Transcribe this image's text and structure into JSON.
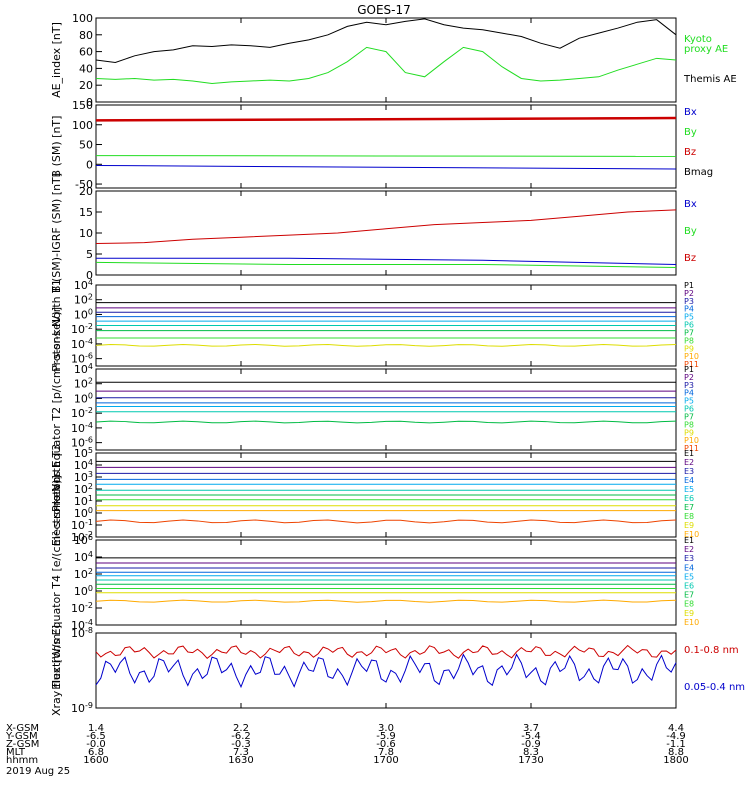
{
  "title": "GOES-17",
  "colors": {
    "black": "#000000",
    "blue": "#0000cc",
    "green": "#22dd22",
    "red": "#cc0000",
    "p_colors": [
      "#000000",
      "#5c007f",
      "#1a1aa6",
      "#0066dd",
      "#00aaee",
      "#00c8b0",
      "#00bb44",
      "#33dd33",
      "#dddd00",
      "#ffaa00",
      "#ee4400",
      "#aa0000"
    ]
  },
  "chart_data": [
    {
      "id": "ae",
      "type": "line",
      "ylabel": "AE_index [nT]",
      "ylim": [
        0,
        100
      ],
      "yticks": [
        "0",
        "20",
        "40",
        "60",
        "80",
        "100"
      ],
      "legend": [
        "Kyoto",
        "proxy AE",
        "Themis AE"
      ],
      "series": [
        {
          "name": "Themis AE",
          "color": "black",
          "x": [
            0,
            4,
            8,
            12,
            16,
            20,
            24,
            28,
            32,
            36,
            40,
            44,
            48,
            52,
            56,
            60,
            64,
            68,
            72,
            76,
            80,
            84,
            88,
            92,
            96,
            100,
            104,
            108,
            112,
            116,
            120
          ],
          "values": [
            50,
            47,
            55,
            60,
            62,
            67,
            66,
            68,
            67,
            65,
            70,
            74,
            80,
            90,
            95,
            92,
            96,
            99,
            92,
            88,
            86,
            82,
            78,
            70,
            64,
            76,
            82,
            88,
            95,
            98,
            80
          ]
        },
        {
          "name": "Kyoto proxy AE",
          "color": "green",
          "x": [
            0,
            4,
            8,
            12,
            16,
            20,
            24,
            28,
            32,
            36,
            40,
            44,
            48,
            52,
            56,
            60,
            64,
            68,
            72,
            76,
            80,
            84,
            88,
            92,
            96,
            100,
            104,
            108,
            112,
            116,
            120
          ],
          "values": [
            28,
            27,
            28,
            26,
            27,
            25,
            22,
            24,
            25,
            26,
            25,
            28,
            35,
            48,
            65,
            60,
            35,
            30,
            48,
            65,
            60,
            42,
            28,
            25,
            26,
            28,
            30,
            38,
            45,
            52,
            50
          ]
        }
      ]
    },
    {
      "id": "bsm",
      "type": "line",
      "ylabel": "B (SM) [nT]",
      "ylim": [
        -60,
        150
      ],
      "yticks": [
        "-50",
        "0",
        "50",
        "100",
        "150"
      ],
      "legend": [
        "Bx",
        "By",
        "Bz",
        "Bmag"
      ],
      "series": [
        {
          "name": "Bmag",
          "color": "black",
          "x": [
            0,
            120
          ],
          "values": [
            112,
            118
          ]
        },
        {
          "name": "Bz",
          "color": "red",
          "x": [
            0,
            120
          ],
          "values": [
            111,
            117
          ]
        },
        {
          "name": "By",
          "color": "green",
          "x": [
            0,
            120
          ],
          "values": [
            22,
            20
          ]
        },
        {
          "name": "Bx",
          "color": "blue",
          "x": [
            0,
            120
          ],
          "values": [
            -3,
            -12
          ]
        }
      ]
    },
    {
      "id": "bdiff",
      "type": "line",
      "ylabel": "B (SM)-IGRF (SM) [nT]",
      "ylim": [
        0,
        20
      ],
      "yticks": [
        "0",
        "5",
        "10",
        "15",
        "20"
      ],
      "legend": [
        "Bx",
        "By",
        "Bz"
      ],
      "series": [
        {
          "name": "Bz",
          "color": "red",
          "x": [
            0,
            10,
            20,
            30,
            40,
            50,
            60,
            70,
            80,
            90,
            100,
            110,
            120
          ],
          "values": [
            7.5,
            7.7,
            8.5,
            9,
            9.5,
            10,
            11,
            12,
            12.5,
            13,
            14,
            15,
            15.5
          ]
        },
        {
          "name": "Bx",
          "color": "blue",
          "x": [
            0,
            40,
            80,
            120
          ],
          "values": [
            4,
            4,
            3.5,
            2.5
          ]
        },
        {
          "name": "By",
          "color": "green",
          "x": [
            0,
            40,
            80,
            120
          ],
          "values": [
            3,
            2.5,
            2.5,
            1.8
          ]
        }
      ]
    },
    {
      "id": "protons_t1",
      "type": "line",
      "ylabel": "Protons North T1",
      "scale": "log",
      "ylim": [
        -7,
        4
      ],
      "yticks": [
        "10^4",
        "10^2",
        "10^0",
        "10^-2",
        "10^-4",
        "10^-6"
      ],
      "legend": [
        "P1",
        "P2",
        "P3",
        "P4",
        "P5",
        "P6",
        "P7",
        "P8",
        "P9",
        "P10",
        "P11"
      ],
      "levels": [
        1.6,
        0.9,
        0.3,
        -0.3,
        -0.9,
        -1.5,
        -2.2,
        -3.2,
        -4.2
      ]
    },
    {
      "id": "protons_t2",
      "type": "line",
      "ylabel": "Protons Equator T2 [p/(cm²-s-sr-keV)]",
      "scale": "log",
      "ylim": [
        -7,
        4
      ],
      "yticks": [
        "10^4",
        "10^2",
        "10^0",
        "10^-2",
        "10^-4",
        "10^-6"
      ],
      "legend": [
        "P1",
        "P2",
        "P3",
        "P4",
        "P5",
        "P6",
        "P7",
        "P8",
        "P9",
        "P10",
        "P11"
      ],
      "levels": [
        2.2,
        1.0,
        0.1,
        -0.6,
        -1.1,
        -1.8,
        -3.2
      ]
    },
    {
      "id": "electrons_t3",
      "type": "line",
      "ylabel": "Electrons North T3",
      "scale": "log",
      "ylim": [
        -2,
        5
      ],
      "yticks": [
        "10^5",
        "10^4",
        "10^3",
        "10^2",
        "10^1",
        "10^0",
        "10^-1",
        "10^-2"
      ],
      "legend": [
        "E1",
        "E2",
        "E3",
        "E4",
        "E5",
        "E6",
        "E7",
        "E8",
        "E9",
        "E10"
      ],
      "levels": [
        4.3,
        3.8,
        3.3,
        2.8,
        2.4,
        1.9,
        1.5,
        1.1,
        0.6,
        0.2,
        -0.7
      ]
    },
    {
      "id": "electrons_t4",
      "type": "line",
      "ylabel": "Electrons Equator T4 [e/(cm²-s-sr-keV)]",
      "scale": "log",
      "ylim": [
        -4,
        6
      ],
      "yticks": [
        "10^6",
        "10^4",
        "10^2",
        "10^0",
        "10^-2",
        "10^-4"
      ],
      "legend": [
        "E1",
        "E2",
        "E3",
        "E4",
        "E5",
        "E6",
        "E7",
        "E8",
        "E9",
        "E10"
      ],
      "levels": [
        3.9,
        3.3,
        2.7,
        2.2,
        1.8,
        1.3,
        0.8,
        0.3,
        -0.2,
        -1.2
      ]
    },
    {
      "id": "xray",
      "type": "line",
      "ylabel": "Xray flux [W/m²]",
      "scale": "log",
      "ylim": [
        -9,
        -8
      ],
      "yticks": [
        "10^-8",
        "10^-9"
      ],
      "legend": [
        "0.1-0.8 nm",
        "0.05-0.4 nm"
      ],
      "series": [
        {
          "name": "0.1-0.8 nm",
          "color": "red",
          "center": 0.25,
          "amp": 0.08
        },
        {
          "name": "0.05-0.4 nm",
          "color": "blue",
          "center": 0.5,
          "amp": 0.2
        }
      ]
    }
  ],
  "xaxis": {
    "ticks": [
      0,
      30,
      60,
      90,
      120
    ],
    "rows": [
      {
        "label": "X-GSM",
        "values": [
          "1.4",
          "2.2",
          "3.0",
          "3.7",
          "4.4"
        ]
      },
      {
        "label": "Y-GSM",
        "values": [
          "-6.5",
          "-6.2",
          "-5.9",
          "-5.4",
          "-4.9"
        ]
      },
      {
        "label": "Z-GSM",
        "values": [
          "-0.0",
          "-0.3",
          "-0.6",
          "-0.9",
          "-1.1"
        ]
      },
      {
        "label": "MLT",
        "values": [
          "6.8",
          "7.3",
          "7.8",
          "8.3",
          "8.8"
        ]
      },
      {
        "label": "hhmm",
        "values": [
          "1600",
          "1630",
          "1700",
          "1730",
          "1800"
        ]
      }
    ],
    "date": "2019 Aug 25"
  }
}
